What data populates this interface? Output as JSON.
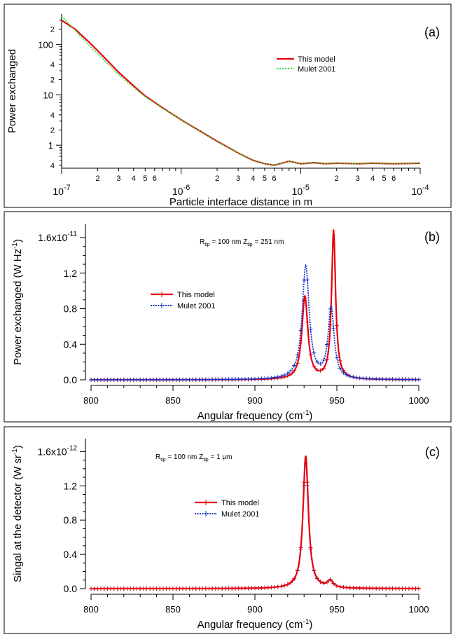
{
  "chart_data": [
    {
      "type": "line",
      "panel_label": "(a)",
      "xscale": "log",
      "yscale": "log",
      "xlabel": "Particle interface distance in m",
      "ylabel": "Power exchanged",
      "xlim": [
        1e-07,
        0.0001
      ],
      "ylim": [
        0.35,
        400
      ],
      "x_major_ticks": [
        {
          "value": 1e-07,
          "mant": "10",
          "exp": "-7"
        },
        {
          "value": 1e-06,
          "mant": "10",
          "exp": "-6"
        },
        {
          "value": 1e-05,
          "mant": "10",
          "exp": "-5"
        },
        {
          "value": 0.0001,
          "mant": "10",
          "exp": "-4"
        }
      ],
      "x_minor_labels": [
        "2",
        "3",
        "4",
        "5",
        "6"
      ],
      "y_major_ticks": [
        {
          "value": 1,
          "label": "1"
        },
        {
          "value": 10,
          "label": "10"
        },
        {
          "value": 100,
          "label": "100"
        }
      ],
      "y_minor_ticks": [
        {
          "value": 0.4,
          "label": "4"
        },
        {
          "value": 2,
          "label": "2"
        },
        {
          "value": 4,
          "label": "4"
        },
        {
          "value": 20,
          "label": "2"
        },
        {
          "value": 40,
          "label": "4"
        },
        {
          "value": 200,
          "label": "2"
        }
      ],
      "legend": [
        "This model",
        "Mulet 2001"
      ],
      "series": [
        {
          "name": "This model",
          "color": "#e8000b",
          "style": "solid",
          "points": [
            [
              1e-07,
              300
            ],
            [
              1.3e-07,
              200
            ],
            [
              1.7e-07,
              110
            ],
            [
              2e-07,
              75
            ],
            [
              3e-07,
              28
            ],
            [
              4e-07,
              15
            ],
            [
              5e-07,
              9.5
            ],
            [
              7e-07,
              5.5
            ],
            [
              1e-06,
              3.2
            ],
            [
              2e-06,
              1.2
            ],
            [
              3e-06,
              0.7
            ],
            [
              4e-06,
              0.5
            ],
            [
              5e-06,
              0.43
            ],
            [
              6e-06,
              0.4
            ],
            [
              8e-06,
              0.48
            ],
            [
              1e-05,
              0.43
            ],
            [
              1.3e-05,
              0.45
            ],
            [
              1.6e-05,
              0.43
            ],
            [
              2e-05,
              0.44
            ],
            [
              3e-05,
              0.43
            ],
            [
              4e-05,
              0.44
            ],
            [
              6e-05,
              0.43
            ],
            [
              0.0001,
              0.44
            ]
          ]
        },
        {
          "name": "Mulet 2001",
          "color": "#33dd33",
          "style": "dotted",
          "points": [
            [
              1e-07,
              360
            ],
            [
              1.3e-07,
              190
            ],
            [
              1.7e-07,
              95
            ],
            [
              2e-07,
              65
            ],
            [
              3e-07,
              25
            ],
            [
              4e-07,
              14
            ],
            [
              5e-07,
              9.2
            ],
            [
              7e-07,
              5.4
            ],
            [
              1e-06,
              3.2
            ],
            [
              2e-06,
              1.2
            ],
            [
              3e-06,
              0.7
            ],
            [
              4e-06,
              0.5
            ],
            [
              5e-06,
              0.43
            ],
            [
              6e-06,
              0.4
            ],
            [
              8e-06,
              0.48
            ],
            [
              1e-05,
              0.43
            ],
            [
              1.3e-05,
              0.45
            ],
            [
              1.6e-05,
              0.43
            ],
            [
              2e-05,
              0.44
            ],
            [
              3e-05,
              0.43
            ],
            [
              4e-05,
              0.44
            ],
            [
              6e-05,
              0.43
            ],
            [
              0.0001,
              0.44
            ]
          ]
        }
      ]
    },
    {
      "type": "line",
      "panel_label": "(b)",
      "xlabel": "Angular frequency (cm",
      "xlabel_sup": "-1",
      "xlabel_end": ")",
      "ylabel": "Power exchanged (W Hz",
      "ylabel_sup": "-1",
      "ylabel_end": ")",
      "xlim": [
        800,
        1000
      ],
      "ylim": [
        0,
        1.75
      ],
      "x_ticks": [
        800,
        850,
        900,
        950,
        1000
      ],
      "y_ticks": [
        {
          "value": 0.0,
          "label": "0.0"
        },
        {
          "value": 0.4,
          "label": "0.4"
        },
        {
          "value": 0.8,
          "label": "0.8"
        },
        {
          "value": 1.2,
          "label": "1.2"
        },
        {
          "value": 1.6,
          "label": "1.6x10",
          "exp": "-11"
        }
      ],
      "annotation": {
        "r": "R",
        "r_sub": "tip",
        "r_val": " = 100 nm  Z",
        "z_sub": "tip",
        "z_val": " = 251 nm"
      },
      "legend": [
        "This model",
        "Mulet 2001"
      ],
      "series": [
        {
          "name": "This model",
          "color": "#e8000b",
          "style": "solid",
          "marker": "+",
          "peaks": [
            {
              "x0": 930.5,
              "gamma": 2.2,
              "amp": 0.93
            },
            {
              "x0": 948.0,
              "gamma": 1.5,
              "amp": 1.66
            }
          ]
        },
        {
          "name": "Mulet 2001",
          "color": "#1133cc",
          "style": "dotted",
          "marker": "+",
          "peaks": [
            {
              "x0": 931.0,
              "gamma": 2.6,
              "amp": 1.27
            },
            {
              "x0": 946.5,
              "gamma": 2.2,
              "amp": 0.8
            }
          ]
        }
      ]
    },
    {
      "type": "line",
      "panel_label": "(c)",
      "xlabel": "Angular frequency (cm",
      "xlabel_sup": "-1",
      "xlabel_end": ")",
      "ylabel": "Singal at the detector (W sr",
      "ylabel_sup": "-1",
      "ylabel_end": ")",
      "xlim": [
        800,
        1000
      ],
      "ylim": [
        0,
        1.75
      ],
      "x_ticks": [
        800,
        850,
        900,
        950,
        1000
      ],
      "y_ticks": [
        {
          "value": 0.0,
          "label": "0.0"
        },
        {
          "value": 0.4,
          "label": "0.4"
        },
        {
          "value": 0.8,
          "label": "0.8"
        },
        {
          "value": 1.2,
          "label": "1.2"
        },
        {
          "value": 1.6,
          "label": "1.6x10",
          "exp": "-12"
        }
      ],
      "annotation": {
        "r": "R",
        "r_sub": "tip",
        "r_val": " = 100 nm  Z",
        "z_sub": "tip",
        "z_val": " = 1 μm"
      },
      "legend": [
        "This model",
        "Mulet 2001"
      ],
      "series": [
        {
          "name": "Mulet 2001",
          "color": "#1133cc",
          "style": "dotted",
          "marker": "+",
          "peaks": [
            {
              "x0": 931.0,
              "gamma": 2.0,
              "amp": 1.5
            },
            {
              "x0": 946.0,
              "gamma": 2.0,
              "amp": 0.08
            }
          ]
        },
        {
          "name": "This model",
          "color": "#e8000b",
          "style": "solid",
          "marker": "+",
          "peaks": [
            {
              "x0": 931.0,
              "gamma": 2.0,
              "amp": 1.55
            },
            {
              "x0": 946.0,
              "gamma": 2.0,
              "amp": 0.08
            }
          ]
        }
      ]
    }
  ]
}
